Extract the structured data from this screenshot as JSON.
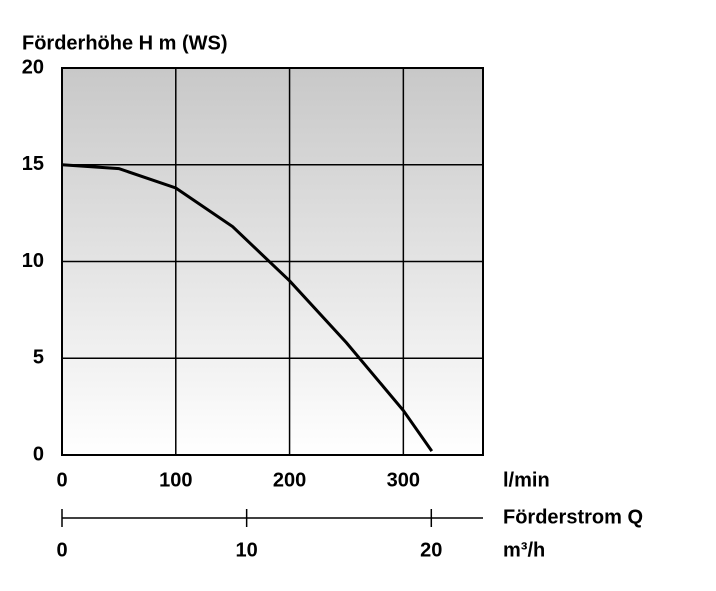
{
  "chart_data": {
    "type": "line",
    "title": "Förderhöhe H m (WS)",
    "x_label": "l/min",
    "x2_title": "Förderstrom Q",
    "x2_label": "m³/h",
    "x": [
      0,
      50,
      100,
      150,
      200,
      250,
      300,
      325
    ],
    "series": [
      {
        "name": "H",
        "color": "#000000",
        "values": [
          15,
          14.8,
          13.8,
          11.8,
          9.0,
          5.8,
          2.3,
          0.2
        ]
      }
    ],
    "xlim": [
      0,
      370
    ],
    "xticks": [
      0,
      100,
      200,
      300
    ],
    "ylim": [
      0,
      20
    ],
    "yticks": [
      0,
      5,
      10,
      15,
      20
    ],
    "x2lim": [
      0,
      22.8
    ],
    "x2ticks": [
      0,
      10,
      20
    ],
    "grid": true
  }
}
